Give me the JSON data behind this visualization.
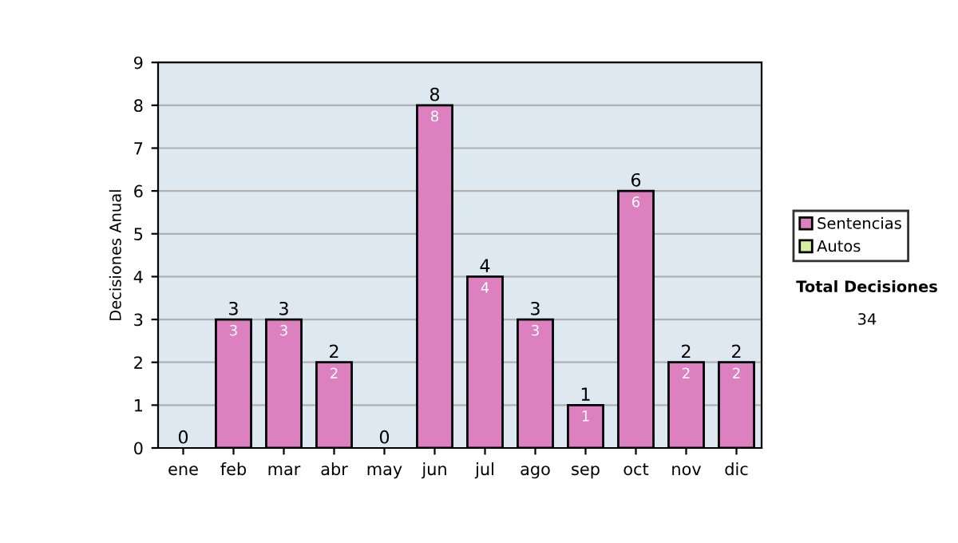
{
  "chart_data": {
    "type": "bar",
    "stacked": true,
    "ylabel": "Decisiones Anual",
    "categories": [
      "ene",
      "feb",
      "mar",
      "abr",
      "may",
      "jun",
      "jul",
      "ago",
      "sep",
      "oct",
      "nov",
      "dic"
    ],
    "series": [
      {
        "name": "Sentencias",
        "color": "#dc80c0",
        "values": [
          0,
          3,
          3,
          2,
          0,
          8,
          4,
          3,
          1,
          6,
          2,
          2
        ],
        "value_labels": [
          null,
          "3",
          "3",
          "2",
          null,
          "8",
          "4",
          "3",
          "1",
          "6",
          "2",
          "2"
        ]
      },
      {
        "name": "Autos",
        "color": "#d8f0a0",
        "values": [
          0,
          0,
          0,
          0,
          0,
          0,
          0,
          0,
          0,
          0,
          0,
          0
        ]
      }
    ],
    "totals": [
      "0",
      "3",
      "3",
      "2",
      "0",
      "8",
      "4",
      "3",
      "1",
      "6",
      "2",
      "2"
    ],
    "ylim": [
      0,
      9
    ],
    "yticks": [
      0,
      1,
      2,
      3,
      4,
      5,
      6,
      7,
      8,
      9
    ],
    "grid": "y",
    "legend": "right",
    "annotations": [
      "Total Decisiones",
      "34"
    ]
  }
}
